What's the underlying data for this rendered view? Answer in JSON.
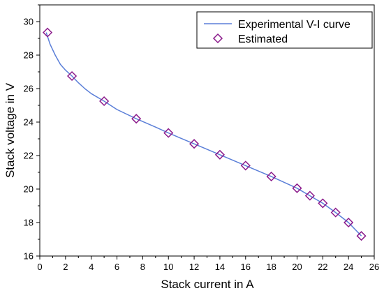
{
  "chart_data": {
    "type": "line",
    "xlabel": "Stack current in A",
    "ylabel": "Stack voltage in V",
    "xlim": [
      0,
      26
    ],
    "ylim": [
      16,
      31
    ],
    "xticks": [
      0,
      2,
      4,
      6,
      8,
      10,
      12,
      14,
      16,
      18,
      20,
      22,
      24,
      26
    ],
    "yticks": [
      16,
      18,
      20,
      22,
      24,
      26,
      28,
      30
    ],
    "grid": false,
    "legend_position": "top-right",
    "series": [
      {
        "name": "Experimental V-I curve",
        "kind": "line",
        "color": "#5b7fd8",
        "x": [
          0.5,
          0.8,
          1.2,
          1.6,
          2.0,
          2.5,
          3.0,
          3.5,
          4.0,
          5.0,
          6.0,
          7.5,
          9.0,
          10.0,
          12.0,
          14.0,
          16.0,
          18.0,
          20.0,
          21.0,
          22.0,
          23.0,
          24.0,
          25.0
        ],
        "y": [
          29.35,
          28.65,
          28.0,
          27.45,
          27.1,
          26.75,
          26.35,
          26.0,
          25.7,
          25.25,
          24.75,
          24.2,
          23.7,
          23.35,
          22.7,
          22.05,
          21.4,
          20.75,
          20.05,
          19.6,
          19.15,
          18.6,
          18.0,
          17.2
        ]
      },
      {
        "name": "Estimated",
        "kind": "marker",
        "color": "#8b1a8b",
        "x": [
          0.6,
          2.5,
          5.0,
          7.5,
          10.0,
          12.0,
          14.0,
          16.0,
          18.0,
          20.0,
          21.0,
          22.0,
          23.0,
          24.0,
          25.0
        ],
        "y": [
          29.35,
          26.75,
          25.25,
          24.2,
          23.35,
          22.7,
          22.05,
          21.4,
          20.75,
          20.05,
          19.6,
          19.15,
          18.6,
          18.0,
          17.2
        ]
      }
    ]
  }
}
